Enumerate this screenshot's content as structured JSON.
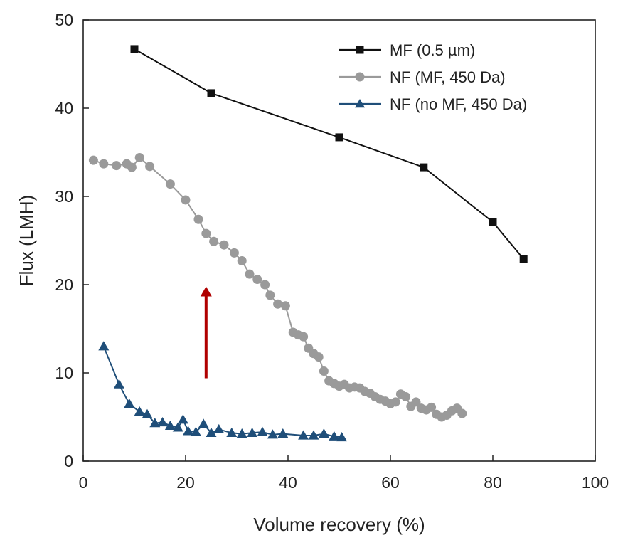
{
  "chart_data": {
    "type": "scatter",
    "title": "",
    "xlabel": "Volume recovery (%)",
    "ylabel": "Flux (LMH)",
    "xlim": [
      0,
      100
    ],
    "ylim": [
      0,
      50
    ],
    "xticks": [
      0,
      20,
      40,
      60,
      80,
      100
    ],
    "yticks": [
      0,
      10,
      20,
      30,
      40,
      50
    ],
    "grid": false,
    "legend_position": "top-right",
    "series": [
      {
        "name": "MF (0.5 µm)",
        "marker": "square",
        "color": "#111111",
        "x": [
          10,
          25,
          50,
          66.5,
          80,
          86
        ],
        "y": [
          46.7,
          41.7,
          36.7,
          33.3,
          27.1,
          22.9
        ]
      },
      {
        "name": "NF (MF, 450 Da)",
        "marker": "circle",
        "color": "#9a9a9a",
        "x": [
          2,
          4,
          6.5,
          8.5,
          9.5,
          11,
          13,
          17,
          20,
          22.5,
          24,
          25.5,
          27.5,
          29.5,
          31,
          32.5,
          34,
          35.5,
          36.5,
          38,
          39.5,
          41,
          42,
          43,
          44,
          45,
          46,
          47,
          48,
          49,
          50,
          51,
          52,
          53,
          54,
          55,
          56,
          57,
          58,
          59,
          60,
          61,
          62,
          63,
          64,
          65,
          66,
          67,
          68,
          69,
          70,
          71,
          72,
          73,
          74
        ],
        "y": [
          34.1,
          33.7,
          33.5,
          33.7,
          33.3,
          34.4,
          33.4,
          31.4,
          29.6,
          27.4,
          25.8,
          24.9,
          24.5,
          23.6,
          22.7,
          21.2,
          20.6,
          20.0,
          18.8,
          17.8,
          17.6,
          14.6,
          14.3,
          14.1,
          12.8,
          12.2,
          11.8,
          10.2,
          9.1,
          8.8,
          8.5,
          8.7,
          8.3,
          8.4,
          8.3,
          7.9,
          7.7,
          7.3,
          7.0,
          6.8,
          6.5,
          6.7,
          7.6,
          7.3,
          6.2,
          6.7,
          6.0,
          5.8,
          6.1,
          5.3,
          5.0,
          5.2,
          5.7,
          6.0,
          5.4
        ]
      },
      {
        "name": "NF (no MF, 450 Da)",
        "marker": "triangle",
        "color": "#1f4e79",
        "x": [
          4,
          7,
          9,
          11,
          12.5,
          14,
          15.5,
          17,
          18.5,
          19.5,
          20.5,
          22,
          23.5,
          25,
          26.5,
          29,
          31,
          33,
          35,
          37,
          39,
          43,
          45,
          47,
          49,
          50.5
        ],
        "y": [
          13.0,
          8.7,
          6.5,
          5.6,
          5.3,
          4.3,
          4.4,
          4.0,
          3.8,
          4.7,
          3.4,
          3.3,
          4.2,
          3.2,
          3.6,
          3.2,
          3.1,
          3.2,
          3.3,
          3.0,
          3.1,
          2.9,
          2.9,
          3.1,
          2.8,
          2.7
        ]
      }
    ],
    "annotations": [
      {
        "type": "arrow",
        "color": "#b00000",
        "x": 24,
        "y_from": 9.4,
        "y_to": 19.8
      }
    ]
  }
}
